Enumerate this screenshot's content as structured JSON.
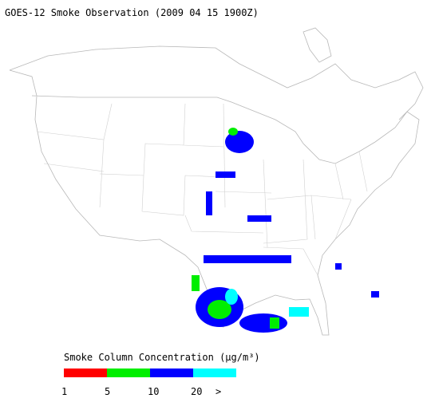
{
  "title": "GOES-12 Smoke Observation (2009 04 15  1900Z)",
  "legend": {
    "title": "Smoke Column Concentration (μg/m³)",
    "colors": [
      "#ff0000",
      "#00ee00",
      "#0000ff",
      "#00ffff"
    ],
    "tick_labels": [
      "1",
      "5",
      "10",
      "20",
      ">"
    ]
  }
}
